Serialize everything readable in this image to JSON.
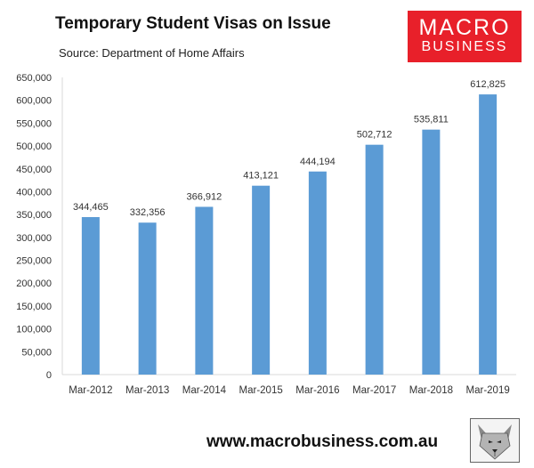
{
  "header": {
    "title": "Temporary Student Visas on Issue",
    "source": "Source: Department of Home Affairs"
  },
  "logo": {
    "line1": "MACRO",
    "line2": "BUSINESS"
  },
  "footer": {
    "url": "www.macrobusiness.com.au"
  },
  "colors": {
    "bar": "#5b9bd5",
    "axis": "#d9d9d9",
    "text": "#333333",
    "logo_bg": "#e8202a"
  },
  "chart_data": {
    "type": "bar",
    "title": "Temporary Student Visas on Issue",
    "subtitle": "Source: Department of Home Affairs",
    "categories": [
      "Mar-2012",
      "Mar-2013",
      "Mar-2014",
      "Mar-2015",
      "Mar-2016",
      "Mar-2017",
      "Mar-2018",
      "Mar-2019"
    ],
    "values": [
      344465,
      332356,
      366912,
      413121,
      444194,
      502712,
      535811,
      612825
    ],
    "data_labels": [
      "344,465",
      "332,356",
      "366,912",
      "413,121",
      "444,194",
      "502,712",
      "535,811",
      "612,825"
    ],
    "ylim": [
      0,
      650000
    ],
    "yticks": [
      0,
      50000,
      100000,
      150000,
      200000,
      250000,
      300000,
      350000,
      400000,
      450000,
      500000,
      550000,
      600000,
      650000
    ],
    "ytick_labels": [
      "0",
      "50,000",
      "100,000",
      "150,000",
      "200,000",
      "250,000",
      "300,000",
      "350,000",
      "400,000",
      "450,000",
      "500,000",
      "550,000",
      "600,000",
      "650,000"
    ],
    "grid": false,
    "legend": "none"
  }
}
